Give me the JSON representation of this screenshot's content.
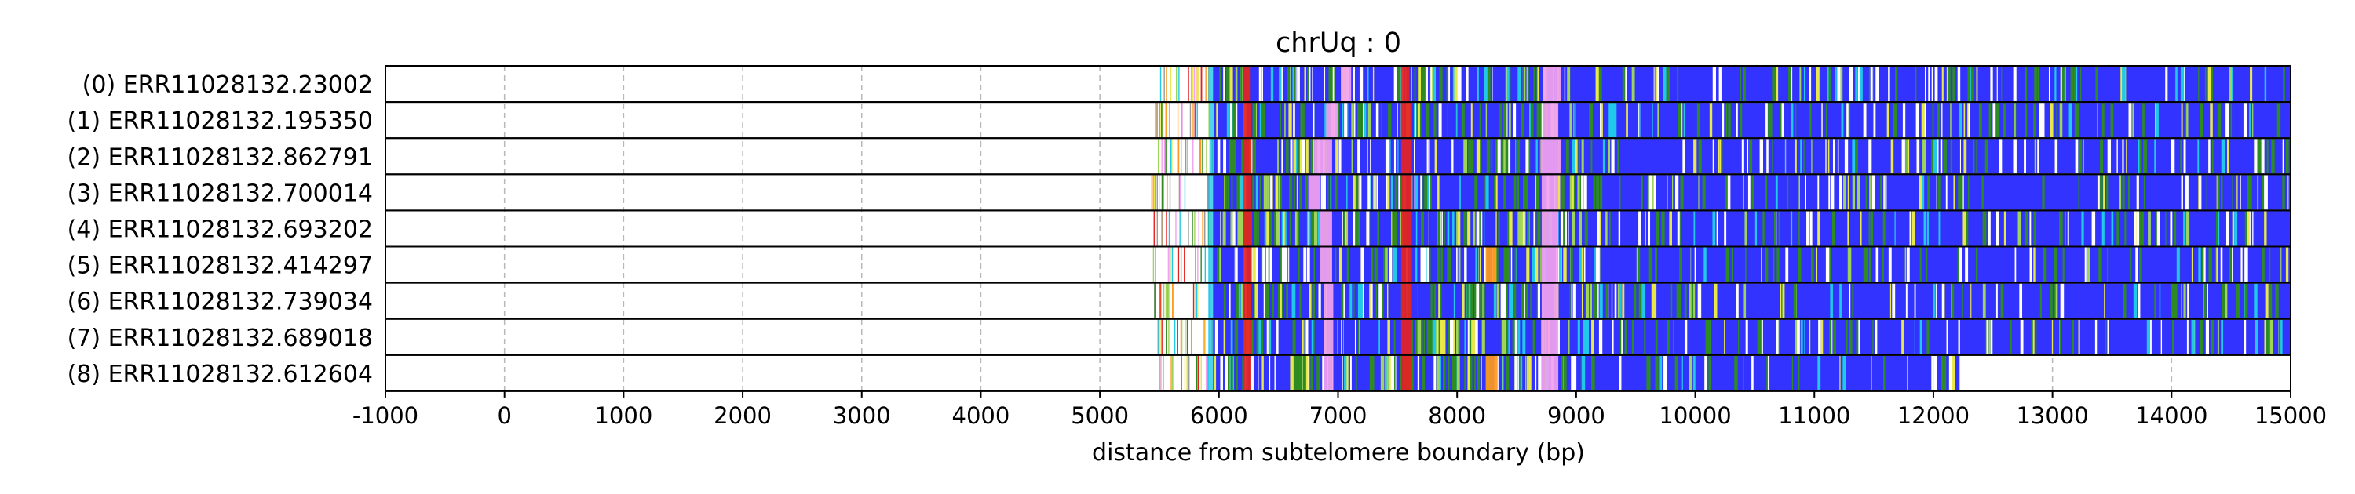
{
  "chart_data": {
    "type": "heatmap",
    "title": "chrUq : 0",
    "xlabel": "distance from subtelomere boundary (bp)",
    "ylabel": "",
    "xlim": [
      -1000,
      15000
    ],
    "xticks": [
      -1000,
      0,
      1000,
      2000,
      3000,
      4000,
      5000,
      6000,
      7000,
      8000,
      9000,
      10000,
      11000,
      12000,
      13000,
      14000,
      15000
    ],
    "grid": "vertical dashed gridlines at each x tick",
    "legend": "none",
    "colors": {
      "background_repeat": "#3333ff",
      "green": "#2e8b22",
      "red": "#e52222",
      "pink": "#f2a2ee",
      "light_green": "#9fd45a",
      "yellow": "#e8e84a",
      "cyan": "#22c8e8",
      "orange": "#ff9922",
      "white": "#ffffff",
      "gray": "#9a9a9a"
    },
    "rows": [
      {
        "label": "(0) ERR11028132.23002",
        "first_sparse": 5450,
        "dense_start": 5950,
        "read_end": 15000,
        "red_bands": [
          [
            6200,
            6260
          ],
          [
            7530,
            7600
          ]
        ],
        "pink_bands": [
          [
            7030,
            7110
          ],
          [
            8720,
            8870
          ]
        ],
        "orange_bands": []
      },
      {
        "label": "(1) ERR11028132.195350",
        "first_sparse": 5460,
        "dense_start": 5960,
        "read_end": 15000,
        "red_bands": [
          [
            6200,
            6270
          ],
          [
            7530,
            7620
          ]
        ],
        "pink_bands": [
          [
            6900,
            7000
          ],
          [
            8720,
            8850
          ]
        ],
        "orange_bands": []
      },
      {
        "label": "(2) ERR11028132.862791",
        "first_sparse": 5460,
        "dense_start": 5960,
        "read_end": 15000,
        "red_bands": [
          [
            6200,
            6270
          ],
          [
            7530,
            7620
          ]
        ],
        "pink_bands": [
          [
            6800,
            6950
          ],
          [
            8700,
            8870
          ]
        ],
        "orange_bands": []
      },
      {
        "label": "(3) ERR11028132.700014",
        "first_sparse": 5430,
        "dense_start": 5950,
        "read_end": 15000,
        "red_bands": [
          [
            6200,
            6270
          ],
          [
            7530,
            7620
          ]
        ],
        "pink_bands": [
          [
            6750,
            6850
          ],
          [
            8710,
            8850
          ]
        ],
        "orange_bands": []
      },
      {
        "label": "(4) ERR11028132.693202",
        "first_sparse": 5440,
        "dense_start": 5950,
        "read_end": 15000,
        "red_bands": [
          [
            6200,
            6270
          ],
          [
            7530,
            7620
          ]
        ],
        "pink_bands": [
          [
            6850,
            6950
          ],
          [
            8710,
            8850
          ]
        ],
        "orange_bands": []
      },
      {
        "label": "(5) ERR11028132.414297",
        "first_sparse": 5440,
        "dense_start": 5950,
        "read_end": 15000,
        "red_bands": [
          [
            6200,
            6270
          ],
          [
            7530,
            7620
          ]
        ],
        "pink_bands": [
          [
            6850,
            6950
          ],
          [
            8710,
            8850
          ]
        ],
        "orange_bands": [
          [
            8240,
            8330
          ]
        ]
      },
      {
        "label": "(6) ERR11028132.739034",
        "first_sparse": 5450,
        "dense_start": 5950,
        "read_end": 15000,
        "red_bands": [
          [
            6200,
            6270
          ],
          [
            7530,
            7620
          ]
        ],
        "pink_bands": [
          [
            6880,
            6960
          ],
          [
            8710,
            8850
          ]
        ],
        "orange_bands": []
      },
      {
        "label": "(7) ERR11028132.689018",
        "first_sparse": 5450,
        "dense_start": 5950,
        "read_end": 15000,
        "red_bands": [
          [
            6200,
            6270
          ],
          [
            7530,
            7620
          ]
        ],
        "pink_bands": [
          [
            6880,
            6960
          ],
          [
            8710,
            8850
          ]
        ],
        "orange_bands": []
      },
      {
        "label": "(8) ERR11028132.612604",
        "first_sparse": 5440,
        "dense_start": 5950,
        "read_end": 12220,
        "red_bands": [
          [
            6200,
            6270
          ],
          [
            7530,
            7620
          ]
        ],
        "pink_bands": [
          [
            6880,
            6960
          ],
          [
            8710,
            8850
          ]
        ],
        "orange_bands": [
          [
            8240,
            8340
          ]
        ]
      }
    ]
  }
}
